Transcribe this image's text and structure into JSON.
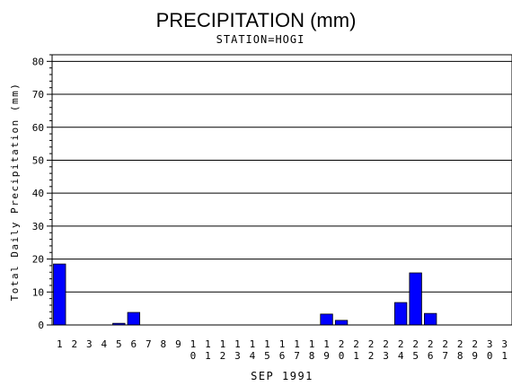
{
  "chart_data": {
    "type": "bar",
    "title": "PRECIPITATION (mm)",
    "subtitle": "STATION=HOGI",
    "xlabel": "SEP 1991",
    "ylabel": "Total Daily Precipitation (mm)",
    "ylim": [
      0,
      82
    ],
    "yticks": [
      0,
      10,
      20,
      30,
      40,
      50,
      60,
      70,
      80
    ],
    "grid": true,
    "bar_color": "#0000ff",
    "categories": [
      "1",
      "2",
      "3",
      "4",
      "5",
      "6",
      "7",
      "8",
      "9",
      "10",
      "11",
      "12",
      "13",
      "14",
      "15",
      "16",
      "17",
      "18",
      "19",
      "20",
      "21",
      "22",
      "23",
      "24",
      "25",
      "26",
      "27",
      "28",
      "29",
      "30",
      "31"
    ],
    "values": [
      18.5,
      0,
      0,
      0,
      0.5,
      3.8,
      0,
      0,
      0,
      0,
      0,
      0,
      0,
      0,
      0,
      0,
      0,
      0,
      3.3,
      1.4,
      0,
      0,
      0,
      6.8,
      15.8,
      3.5,
      0,
      0,
      0,
      0,
      0
    ]
  }
}
